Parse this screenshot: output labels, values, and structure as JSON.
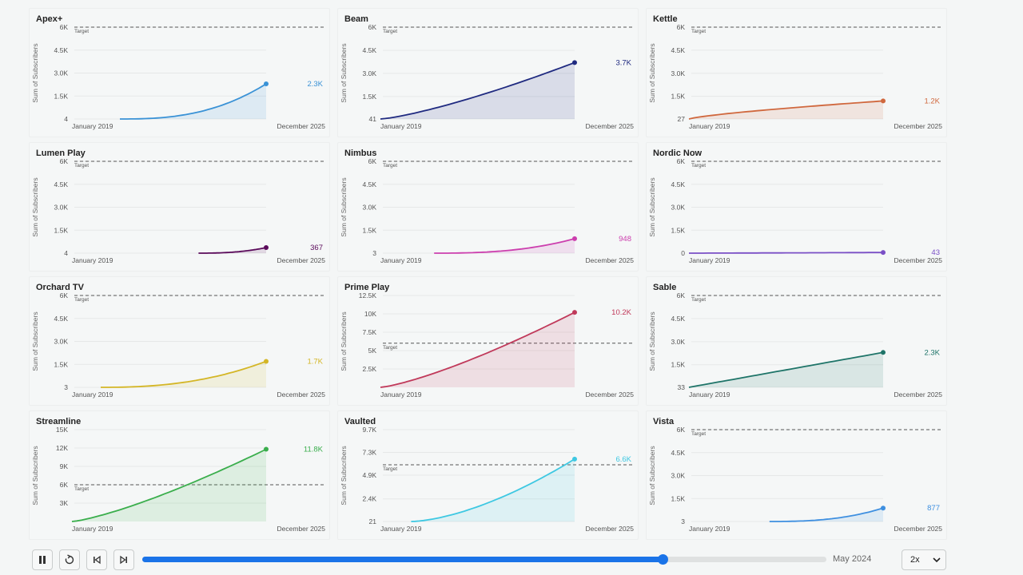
{
  "chart_data": [
    {
      "type": "area",
      "title": "Apex+",
      "ylabel": "Sum of Subscribers",
      "yticks": [
        4,
        1500,
        3000,
        4500,
        6000
      ],
      "ytick_labels": [
        "4",
        "1.5K",
        "3.0K",
        "4.5K",
        "6K"
      ],
      "ylim": [
        4,
        6000
      ],
      "target": 6000,
      "target_label": "Target",
      "x_start": "January 2019",
      "x_end": "December 2025",
      "start_frac": 0.25,
      "start_value": 4,
      "end_value": 2300,
      "end_label": "2.3K",
      "curve": 2.6,
      "color": "#3a92d6"
    },
    {
      "type": "area",
      "title": "Beam",
      "ylabel": "Sum of Subscribers",
      "yticks": [
        41,
        1500,
        3000,
        4500,
        6000
      ],
      "ytick_labels": [
        "41",
        "1.5K",
        "3.0K",
        "4.5K",
        "6K"
      ],
      "ylim": [
        41,
        6000
      ],
      "target": 6000,
      "target_label": "Target",
      "x_start": "January 2019",
      "x_end": "December 2025",
      "start_frac": 0.0,
      "start_value": 41,
      "end_value": 3700,
      "end_label": "3.7K",
      "curve": 1.3,
      "color": "#1f2a80"
    },
    {
      "type": "area",
      "title": "Kettle",
      "ylabel": "Sum of Subscribers",
      "yticks": [
        27,
        1500,
        3000,
        4500,
        6000
      ],
      "ytick_labels": [
        "27",
        "1.5K",
        "3.0K",
        "4.5K",
        "6K"
      ],
      "ylim": [
        27,
        6000
      ],
      "target": 6000,
      "target_label": "Target",
      "x_start": "January 2019",
      "x_end": "December 2025",
      "start_frac": 0.0,
      "start_value": 27,
      "end_value": 1200,
      "end_label": "1.2K",
      "curve": 0.75,
      "color": "#d0683e"
    },
    {
      "type": "area",
      "title": "Lumen Play",
      "ylabel": "Sum of Subscribers",
      "yticks": [
        4,
        1500,
        3000,
        4500,
        6000
      ],
      "ytick_labels": [
        "4",
        "1.5K",
        "3.0K",
        "4.5K",
        "6K"
      ],
      "ylim": [
        4,
        6000
      ],
      "target": 6000,
      "target_label": "Target",
      "x_start": "January 2019",
      "x_end": "December 2025",
      "start_frac": 0.66,
      "start_value": 4,
      "end_value": 367,
      "end_label": "367",
      "curve": 2.5,
      "color": "#5a0a5a"
    },
    {
      "type": "area",
      "title": "Nimbus",
      "ylabel": "Sum of Subscribers",
      "yticks": [
        3,
        1500,
        3000,
        4500,
        6000
      ],
      "ytick_labels": [
        "3",
        "1.5K",
        "3.0K",
        "4.5K",
        "6K"
      ],
      "ylim": [
        3,
        6000
      ],
      "target": 6000,
      "target_label": "Target",
      "x_start": "January 2019",
      "x_end": "December 2025",
      "start_frac": 0.28,
      "start_value": 3,
      "end_value": 948,
      "end_label": "948",
      "curve": 2.6,
      "color": "#cc3fae"
    },
    {
      "type": "area",
      "title": "Nordic Now",
      "ylabel": "Sum of Subscribers",
      "yticks": [
        0,
        1500,
        3000,
        4500,
        6000
      ],
      "ytick_labels": [
        "0",
        "1.5K",
        "3.0K",
        "4.5K",
        "6K"
      ],
      "ylim": [
        0,
        6000
      ],
      "target": 6000,
      "target_label": "Target",
      "x_start": "January 2019",
      "x_end": "December 2025",
      "start_frac": 0.0,
      "start_value": 0,
      "end_value": 43,
      "end_label": "43",
      "curve": 1.2,
      "color": "#7a4fc6"
    },
    {
      "type": "area",
      "title": "Orchard TV",
      "ylabel": "Sum of Subscribers",
      "yticks": [
        3,
        1500,
        3000,
        4500,
        6000
      ],
      "ytick_labels": [
        "3",
        "1.5K",
        "3.0K",
        "4.5K",
        "6K"
      ],
      "ylim": [
        3,
        6000
      ],
      "target": 6000,
      "target_label": "Target",
      "x_start": "January 2019",
      "x_end": "December 2025",
      "start_frac": 0.15,
      "start_value": 3,
      "end_value": 1700,
      "end_label": "1.7K",
      "curve": 2.4,
      "color": "#d4b626"
    },
    {
      "type": "area",
      "title": "Prime Play",
      "ylabel": "Sum of Subscribers",
      "yticks": [
        2500,
        5000,
        7500,
        10000,
        12500
      ],
      "ytick_labels": [
        "2.5K",
        "5K",
        "7.5K",
        "10K",
        "12.5K"
      ],
      "ylim": [
        0,
        12500
      ],
      "target": 6000,
      "target_label": "Target",
      "x_start": "January 2019",
      "x_end": "December 2025",
      "start_frac": 0.0,
      "start_value": 0,
      "end_value": 10200,
      "end_label": "10.2K",
      "curve": 1.3,
      "color": "#c0395a"
    },
    {
      "type": "area",
      "title": "Sable",
      "ylabel": "Sum of Subscribers",
      "yticks": [
        33,
        1500,
        3000,
        4500,
        6000
      ],
      "ytick_labels": [
        "33",
        "1.5K",
        "3.0K",
        "4.5K",
        "6K"
      ],
      "ylim": [
        33,
        6000
      ],
      "target": 6000,
      "target_label": "Target",
      "x_start": "January 2019",
      "x_end": "December 2025",
      "start_frac": 0.0,
      "start_value": 33,
      "end_value": 2300,
      "end_label": "2.3K",
      "curve": 1.0,
      "color": "#1e7468"
    },
    {
      "type": "area",
      "title": "Streamline",
      "ylabel": "Sum of Subscribers",
      "yticks": [
        3000,
        6000,
        9000,
        12000,
        15000
      ],
      "ytick_labels": [
        "3K",
        "6K",
        "9K",
        "12K",
        "15K"
      ],
      "ylim": [
        0,
        15000
      ],
      "target": 6000,
      "target_label": "Target",
      "x_start": "January 2019",
      "x_end": "December 2025",
      "start_frac": 0.0,
      "start_value": 0,
      "end_value": 11800,
      "end_label": "11.8K",
      "curve": 1.3,
      "color": "#3aae4c"
    },
    {
      "type": "area",
      "title": "Vaulted",
      "ylabel": "Sum of Subscribers",
      "yticks": [
        21,
        2400,
        4900,
        7300,
        9700
      ],
      "ytick_labels": [
        "21",
        "2.4K",
        "4.9K",
        "7.3K",
        "9.7K"
      ],
      "ylim": [
        21,
        9700
      ],
      "target": 6000,
      "target_label": "Target",
      "x_start": "January 2019",
      "x_end": "December 2025",
      "start_frac": 0.16,
      "start_value": 21,
      "end_value": 6600,
      "end_label": "6.6K",
      "curve": 1.6,
      "color": "#3ec8e2"
    },
    {
      "type": "area",
      "title": "Vista",
      "ylabel": "Sum of Subscribers",
      "yticks": [
        3,
        1500,
        3000,
        4500,
        6000
      ],
      "ytick_labels": [
        "3",
        "1.5K",
        "3.0K",
        "4.5K",
        "6K"
      ],
      "ylim": [
        3,
        6000
      ],
      "target": 6000,
      "target_label": "Target",
      "x_start": "January 2019",
      "x_end": "December 2025",
      "start_frac": 0.42,
      "start_value": 3,
      "end_value": 877,
      "end_label": "877",
      "curve": 2.6,
      "color": "#3e8fe0"
    }
  ],
  "controls": {
    "current_date": "May 2024",
    "progress": 0.76,
    "speed": "2x"
  }
}
